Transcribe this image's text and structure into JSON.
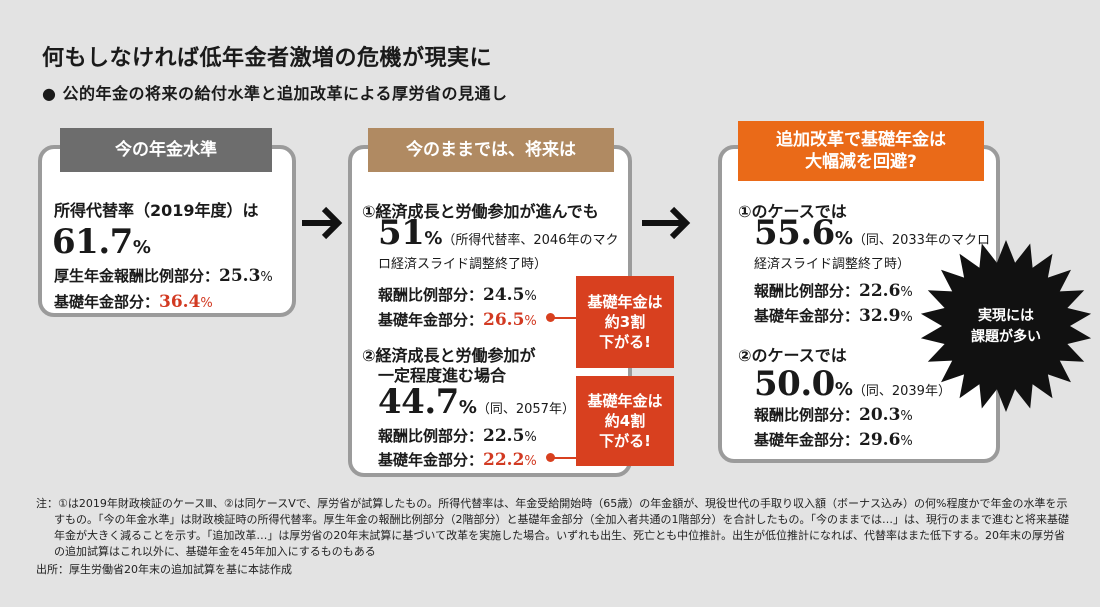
{
  "title": "何もしなければ低年金者激増の危機が現実に",
  "subtitle": "● 公的年金の将来の給付水準と追加改革による厚労省の見通し",
  "colors": {
    "gray_header": "#6d6d6d",
    "brown_header": "#b08a62",
    "orange_header": "#ea6a18",
    "callout_red": "#d8401f",
    "highlight_red": "#d23a22",
    "burst": "#111111"
  },
  "card1": {
    "header": "今の年金水準",
    "label": "所得代替率（2019年度）は",
    "value": "61.7",
    "value_unit": "%",
    "rows": [
      {
        "label": "厚生年金報酬比例部分：",
        "value": "25.3",
        "unit": "%"
      },
      {
        "label": "基礎年金部分：",
        "value": "36.4",
        "unit": "%"
      }
    ]
  },
  "card2": {
    "header": "今のままでは、将来は",
    "case1": {
      "heading": "①経済成長と労働参加が進んでも",
      "value": "51",
      "value_unit": "%",
      "note": "（所得代替率、2046年のマクロ経済スライド調整終了時）",
      "rows": [
        {
          "label": "報酬比例部分：",
          "value": "24.5",
          "unit": "%"
        },
        {
          "label": "基礎年金部分：",
          "value": "26.5",
          "unit": "%"
        }
      ]
    },
    "case2": {
      "heading_line1": "②経済成長と労働参加が",
      "heading_line2": "一定程度進む場合",
      "value": "44.7",
      "value_unit": "%",
      "note": "（同、2057年）",
      "rows": [
        {
          "label": "報酬比例部分：",
          "value": "22.5",
          "unit": "%"
        },
        {
          "label": "基礎年金部分：",
          "value": "22.2",
          "unit": "%"
        }
      ]
    }
  },
  "callouts": [
    "基礎年金は\n約3割\n下がる!",
    "基礎年金は\n約4割\n下がる!"
  ],
  "card3": {
    "header": "追加改革で基礎年金は\n大幅減を回避?",
    "case1": {
      "heading": "①のケースでは",
      "value": "55.6",
      "value_unit": "%",
      "note": "（同、2033年のマクロ経済スライド調整終了時）",
      "rows": [
        {
          "label": "報酬比例部分：",
          "value": "22.6",
          "unit": "%"
        },
        {
          "label": "基礎年金部分：",
          "value": "32.9",
          "unit": "%"
        }
      ]
    },
    "case2": {
      "heading": "②のケースでは",
      "value": "50.0",
      "value_unit": "%",
      "note": "（同、2039年）",
      "rows": [
        {
          "label": "報酬比例部分：",
          "value": "20.3",
          "unit": "%"
        },
        {
          "label": "基礎年金部分：",
          "value": "29.6",
          "unit": "%"
        }
      ]
    }
  },
  "burst_text": "実現には\n課題が多い",
  "notes": {
    "line1": "注：①は2019年財政検証のケースⅢ、②は同ケースⅤで、厚労省が試算したもの。所得代替率は、年金受給開始時（65歳）の年金額が、現役世代の手取り収入額（ボーナス込み）の何%程度かで年金の水準を示すもの。「今の年金水準」は財政検証時の所得代替率。厚生年金の報酬比例部分（2階部分）と基礎年金部分（全加入者共通の1階部分）を合計したもの。「今のままでは…」は、現行のままで進むと将来基礎年金が大きく減ることを示す。「追加改革…」は厚労省の20年末試算に基づいて改革を実施した場合。いずれも出生、死亡とも中位推計。出生が低位推計になれば、代替率はまた低下する。20年末の厚労省の追加試算はこれ以外に、基礎年金を45年加入にするものもある",
    "source": "出所：厚生労働省20年末の追加試算を基に本誌作成"
  }
}
